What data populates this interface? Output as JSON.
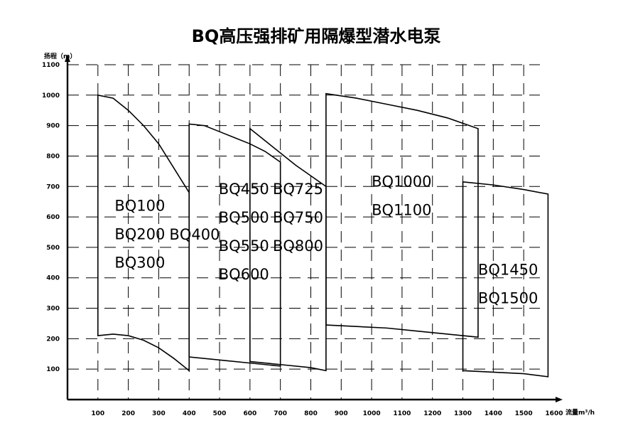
{
  "chart_data": {
    "type": "area",
    "title": "BQ高压强排矿用隔爆型潜水电泵",
    "ylabel": "扬程（m）",
    "xlabel": "流量m³/h",
    "xlim": [
      0,
      1600
    ],
    "ylim": [
      0,
      1100
    ],
    "x_ticks": [
      100,
      200,
      300,
      400,
      500,
      600,
      700,
      800,
      900,
      1000,
      1100,
      1200,
      1300,
      1400,
      1500,
      1600
    ],
    "y_ticks": [
      100,
      200,
      300,
      400,
      500,
      600,
      700,
      800,
      900,
      1000,
      1100
    ],
    "grid": true,
    "regions": [
      {
        "models": [
          "BQ100",
          "BQ200",
          "BQ300"
        ],
        "label_lines": [
          "BQ100",
          "BQ200",
          "BQ300"
        ],
        "label_anchor": [
          155,
          620
        ],
        "top": [
          [
            100,
            1000
          ],
          [
            150,
            990
          ],
          [
            200,
            950
          ],
          [
            250,
            900
          ],
          [
            300,
            840
          ],
          [
            350,
            760
          ],
          [
            400,
            680
          ]
        ],
        "bottom": [
          [
            100,
            210
          ],
          [
            150,
            215
          ],
          [
            200,
            210
          ],
          [
            250,
            195
          ],
          [
            300,
            170
          ],
          [
            350,
            135
          ],
          [
            400,
            95
          ]
        ]
      },
      {
        "models": [
          "BQ400"
        ],
        "label_lines": [
          "BQ400"
        ],
        "label_anchor": [
          335,
          525
        ],
        "top": [
          [
            400,
            905
          ],
          [
            450,
            900
          ],
          [
            500,
            880
          ],
          [
            550,
            860
          ],
          [
            600,
            840
          ],
          [
            650,
            815
          ],
          [
            700,
            780
          ]
        ],
        "bottom": [
          [
            400,
            140
          ],
          [
            500,
            130
          ],
          [
            600,
            120
          ],
          [
            700,
            110
          ]
        ]
      },
      {
        "models": [
          "BQ450",
          "BQ500",
          "BQ550",
          "BQ600"
        ],
        "label_lines": [
          "BQ450",
          "BQ500",
          "BQ550",
          "BQ600"
        ],
        "label_anchor": [
          497,
          675
        ],
        "top": [
          [
            600,
            890
          ],
          [
            650,
            850
          ],
          [
            700,
            810
          ],
          [
            750,
            770
          ],
          [
            800,
            735
          ],
          [
            850,
            700
          ]
        ],
        "bottom": [
          [
            600,
            125
          ],
          [
            700,
            115
          ],
          [
            800,
            105
          ],
          [
            850,
            95
          ]
        ]
      },
      {
        "models": [
          "BQ725",
          "BQ750",
          "BQ800"
        ],
        "label_lines": [
          "BQ725",
          "BQ750",
          "BQ800"
        ],
        "label_anchor": [
          675,
          675
        ],
        "top": [],
        "bottom": []
      },
      {
        "models": [
          "BQ1000",
          "BQ1100"
        ],
        "label_lines": [
          "BQ1000",
          "BQ1100"
        ],
        "label_anchor": [
          1000,
          700
        ],
        "top": [
          [
            850,
            1005
          ],
          [
            950,
            990
          ],
          [
            1050,
            970
          ],
          [
            1150,
            950
          ],
          [
            1250,
            925
          ],
          [
            1350,
            890
          ]
        ],
        "bottom": [
          [
            850,
            245
          ],
          [
            950,
            240
          ],
          [
            1050,
            235
          ],
          [
            1150,
            225
          ],
          [
            1250,
            215
          ],
          [
            1350,
            205
          ]
        ]
      },
      {
        "models": [
          "BQ1450",
          "BQ1500"
        ],
        "label_lines": [
          "BQ1450",
          "BQ1500"
        ],
        "label_anchor": [
          1350,
          410
        ],
        "top": [
          [
            1300,
            715
          ],
          [
            1400,
            705
          ],
          [
            1500,
            690
          ],
          [
            1580,
            675
          ]
        ],
        "bottom": [
          [
            1300,
            95
          ],
          [
            1400,
            90
          ],
          [
            1500,
            85
          ],
          [
            1580,
            75
          ]
        ]
      }
    ]
  }
}
